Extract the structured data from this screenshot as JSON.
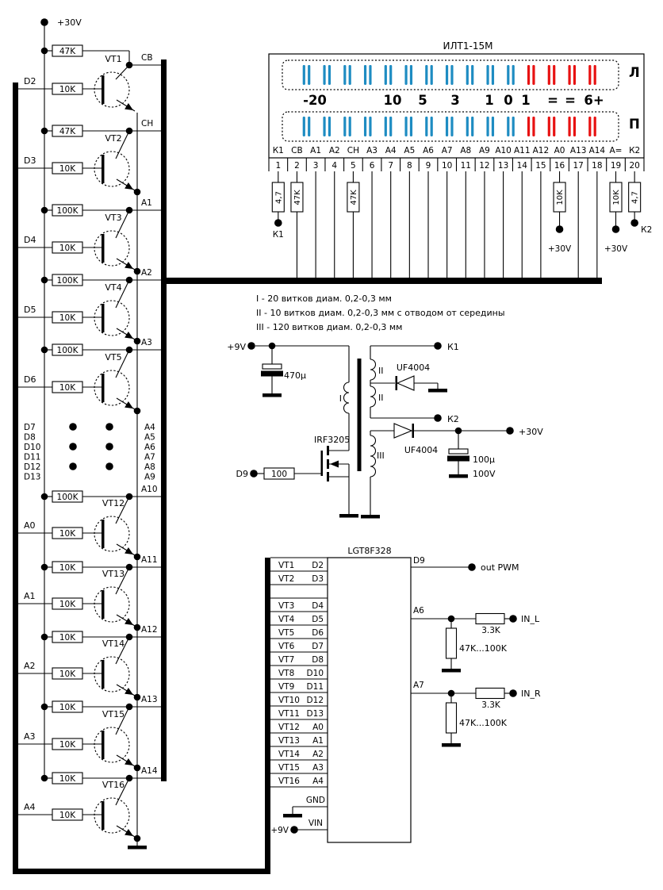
{
  "display": {
    "title": "ИЛТ1-15М",
    "left_channel_label": "Л",
    "right_channel_label": "П",
    "text_color": "#2A3BD8",
    "segment_colors": {
      "normal": "#1E8CC2",
      "overload": "#E81212"
    },
    "segments_per_row": 15,
    "overload_segments": 4,
    "scale_labels": [
      "-20",
      "10",
      "5",
      "3",
      "1",
      "0",
      "1",
      "=",
      "=",
      "6+"
    ],
    "pins": [
      "К1",
      "СВ",
      "А1",
      "А2",
      "СН",
      "А3",
      "А4",
      "А5",
      "А6",
      "А7",
      "А8",
      "А9",
      "А10",
      "А11",
      "А12",
      "А0",
      "А13",
      "А14",
      "А=",
      "К2"
    ],
    "pin_numbers": [
      "1",
      "2",
      "3",
      "4",
      "5",
      "6",
      "7",
      "8",
      "9",
      "10",
      "11",
      "12",
      "13",
      "14",
      "15",
      "16",
      "17",
      "18",
      "19",
      "20"
    ],
    "pin_components": [
      {
        "pin": 1,
        "value": "4,7",
        "terminal": "К1",
        "tpos": "below"
      },
      {
        "pin": 2,
        "value": "47K"
      },
      {
        "pin": 5,
        "value": "47K"
      },
      {
        "pin": 16,
        "value": "10K",
        "terminal": "+30V",
        "tpos": "below-far"
      },
      {
        "pin": 19,
        "value": "10K",
        "terminal": "+30V",
        "tpos": "below-far"
      },
      {
        "pin": 20,
        "value": "4,7",
        "terminal": "К2",
        "tpos": "right"
      }
    ]
  },
  "driver": {
    "supply": "+30V",
    "stages": [
      {
        "name": "VT1",
        "input": "D2",
        "base_res": "10K",
        "pull_res": "47K",
        "output": "СВ"
      },
      {
        "name": "VT2",
        "input": "D3",
        "base_res": "10K",
        "pull_res": "47K",
        "output": "СН"
      },
      {
        "name": "VT3",
        "input": "D4",
        "base_res": "10K",
        "pull_res": "100K",
        "output": "A1"
      },
      {
        "name": "VT4",
        "input": "D5",
        "base_res": "10K",
        "pull_res": "100K",
        "output": "A2"
      },
      {
        "name": "VT5",
        "input": "D6",
        "base_res": "10K",
        "pull_res": "100K",
        "output": "A3"
      },
      {
        "name": "VT12",
        "input": "A0",
        "base_res": "10K",
        "pull_res": "100K",
        "output": "A10"
      },
      {
        "name": "VT13",
        "input": "A1",
        "base_res": "10K",
        "pull_res": "10K",
        "output": "A11"
      },
      {
        "name": "VT14",
        "input": "A2",
        "base_res": "10K",
        "pull_res": "10K",
        "output": "A12"
      },
      {
        "name": "VT15",
        "input": "A3",
        "base_res": "10K",
        "pull_res": "10K",
        "output": "A13"
      },
      {
        "name": "VT16",
        "input": "A4",
        "base_res": "10K",
        "pull_res": "10K",
        "output": "A14"
      }
    ],
    "hidden_inputs": [
      "D7",
      "D8",
      "D10",
      "D11",
      "D12",
      "D13"
    ],
    "hidden_outputs": [
      "A4",
      "A5",
      "A6",
      "A7",
      "A8",
      "A9"
    ]
  },
  "converter": {
    "notes": [
      "I - 20 витков диам. 0,2-0,3 мм",
      "II - 10 витков диам. 0,2-0,3 мм с отводом от середины",
      "III - 120 витков диам. 0,2-0,3 мм"
    ],
    "input_supply": "+9V",
    "input_cap": "470µ",
    "mosfet": "IRF3205",
    "gate_resistor": "100",
    "gate_signal": "D9",
    "windings": {
      "primary": "I",
      "filament_upper": "II",
      "filament_lower": "II",
      "hv": "III"
    },
    "filament_diode": "UF4004",
    "hv_diode": "UF4004",
    "filament_terminals": {
      "k1": "К1",
      "k2": "К2"
    },
    "output": "+30V",
    "output_cap": "100µ",
    "output_cap_voltage": "100V"
  },
  "mcu": {
    "name": "LGT8F328",
    "left_pins": [
      [
        "VT1",
        "D2"
      ],
      [
        "VT2",
        "D3"
      ],
      null,
      [
        "VT3",
        "D4"
      ],
      [
        "VT4",
        "D5"
      ],
      [
        "VT5",
        "D6"
      ],
      [
        "VT6",
        "D7"
      ],
      [
        "VT7",
        "D8"
      ],
      [
        "VT8",
        "D10"
      ],
      [
        "VT9",
        "D11"
      ],
      [
        "VT10",
        "D12"
      ],
      [
        "VT11",
        "D13"
      ],
      [
        "VT12",
        "A0"
      ],
      [
        "VT13",
        "A1"
      ],
      [
        "VT14",
        "A2"
      ],
      [
        "VT15",
        "A3"
      ],
      [
        "VT16",
        "A4"
      ]
    ],
    "pwm": {
      "pin": "D9",
      "label": "out PWM"
    },
    "audio_inputs": [
      {
        "pin": "A6",
        "series": "3.3K",
        "pulldown": "47K...100K",
        "label": "IN_L"
      },
      {
        "pin": "A7",
        "series": "3.3K",
        "pulldown": "47K...100K",
        "label": "IN_R"
      }
    ],
    "gnd": "GND",
    "vin": "VIN",
    "vin_supply": "+9V"
  }
}
